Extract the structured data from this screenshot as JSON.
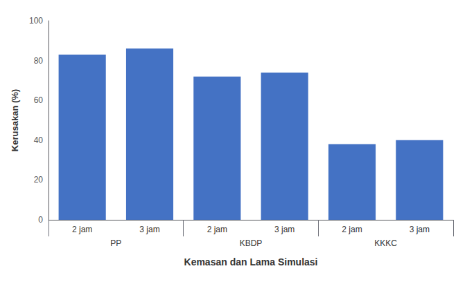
{
  "chart_data": {
    "type": "bar",
    "categories": [
      "2 jam",
      "3 jam",
      "2 jam",
      "3 jam",
      "2 jam",
      "3 jam"
    ],
    "groups": [
      "PP",
      "KBDP",
      "KKKC"
    ],
    "values": [
      83,
      86,
      72,
      74,
      38,
      40
    ],
    "color": "#4472C4",
    "xlabel": "Kemasan dan Lama Simulasi",
    "ylabel": "Kerusakan (%)",
    "ylim": [
      0,
      100
    ],
    "yticks": [
      0,
      20,
      40,
      60,
      80,
      100
    ],
    "grid": false
  }
}
